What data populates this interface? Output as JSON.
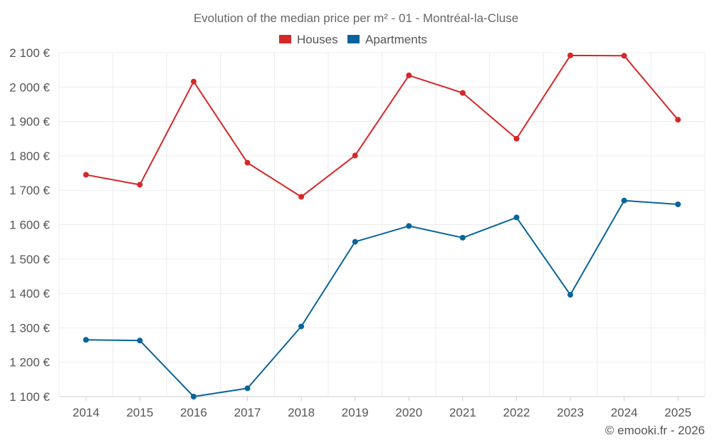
{
  "chart_data": {
    "type": "line",
    "title": "Evolution of the median price per m² - 01 - Montréal-la-Cluse",
    "categories": [
      "2014",
      "2015",
      "2016",
      "2017",
      "2018",
      "2019",
      "2020",
      "2021",
      "2022",
      "2023",
      "2024",
      "2025"
    ],
    "series": [
      {
        "name": "Houses",
        "color": "#d62728",
        "values": [
          1745,
          1716,
          2016,
          1780,
          1681,
          1801,
          2034,
          1983,
          1850,
          2092,
          2091,
          1905
        ]
      },
      {
        "name": "Apartments",
        "color": "#08649b",
        "values": [
          1265,
          1263,
          1100,
          1124,
          1304,
          1550,
          1596,
          1562,
          1621,
          1396,
          1670,
          1659
        ]
      }
    ],
    "y_ticks": [
      "1 100 €",
      "1 200 €",
      "1 300 €",
      "1 400 €",
      "1 500 €",
      "1 600 €",
      "1 700 €",
      "1 800 €",
      "1 900 €",
      "2 000 €",
      "2 100 €"
    ],
    "ylim": [
      1100,
      2100
    ],
    "legend_position": "top-center",
    "grid": true
  },
  "credit": "© emooki.fr - 2026"
}
